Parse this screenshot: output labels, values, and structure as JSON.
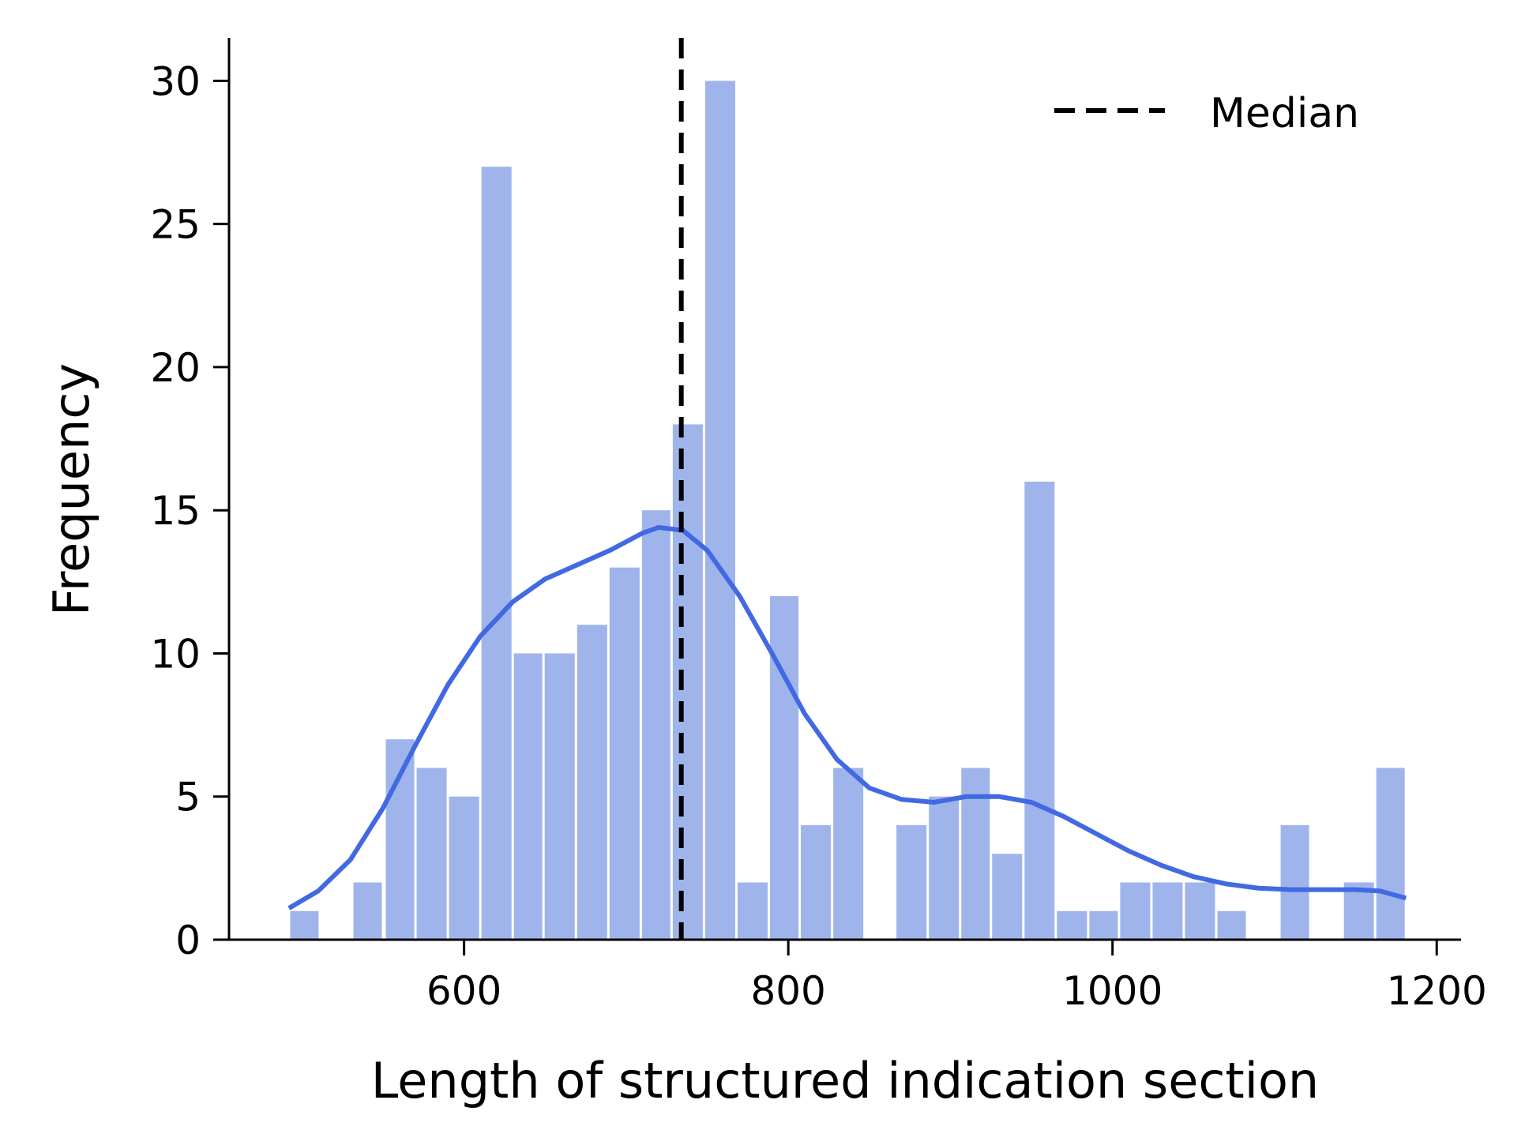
{
  "chart_data": {
    "type": "bar",
    "title": "",
    "xlabel": "Length of structured indication section",
    "ylabel": "Frequency",
    "xlim": [
      455,
      1215
    ],
    "ylim": [
      0,
      31.5
    ],
    "xticks": [
      "600",
      "800",
      "1000",
      "1200"
    ],
    "yticks": [
      "0",
      "5",
      "10",
      "15",
      "20",
      "25",
      "30"
    ],
    "grid": false,
    "legend": {
      "placement": "top-right",
      "entries": [
        "Median"
      ]
    },
    "bar_color": "#a0b4ec",
    "kde_color": "#4169e1",
    "bins": [
      {
        "x0": 492,
        "x1": 511,
        "value": 1
      },
      {
        "x0": 531,
        "x1": 550,
        "value": 2
      },
      {
        "x0": 551,
        "x1": 570,
        "value": 7
      },
      {
        "x0": 570,
        "x1": 590,
        "value": 6
      },
      {
        "x0": 590,
        "x1": 610,
        "value": 5
      },
      {
        "x0": 610,
        "x1": 630,
        "value": 27
      },
      {
        "x0": 630,
        "x1": 649,
        "value": 10
      },
      {
        "x0": 649,
        "x1": 669,
        "value": 10
      },
      {
        "x0": 669,
        "x1": 689,
        "value": 11
      },
      {
        "x0": 689,
        "x1": 709,
        "value": 13
      },
      {
        "x0": 709,
        "x1": 728,
        "value": 15
      },
      {
        "x0": 728,
        "x1": 748,
        "value": 18
      },
      {
        "x0": 748,
        "x1": 768,
        "value": 30
      },
      {
        "x0": 768,
        "x1": 788,
        "value": 2
      },
      {
        "x0": 788,
        "x1": 807,
        "value": 12
      },
      {
        "x0": 807,
        "x1": 827,
        "value": 4
      },
      {
        "x0": 827,
        "x1": 847,
        "value": 6
      },
      {
        "x0": 866,
        "x1": 886,
        "value": 4
      },
      {
        "x0": 886,
        "x1": 906,
        "value": 5
      },
      {
        "x0": 906,
        "x1": 925,
        "value": 6
      },
      {
        "x0": 925,
        "x1": 945,
        "value": 3
      },
      {
        "x0": 945,
        "x1": 965,
        "value": 16
      },
      {
        "x0": 965,
        "x1": 985,
        "value": 1
      },
      {
        "x0": 985,
        "x1": 1004,
        "value": 1
      },
      {
        "x0": 1004,
        "x1": 1024,
        "value": 2
      },
      {
        "x0": 1024,
        "x1": 1044,
        "value": 2
      },
      {
        "x0": 1044,
        "x1": 1064,
        "value": 2
      },
      {
        "x0": 1064,
        "x1": 1083,
        "value": 1
      },
      {
        "x0": 1103,
        "x1": 1122,
        "value": 4
      },
      {
        "x0": 1142,
        "x1": 1162,
        "value": 2
      },
      {
        "x0": 1162,
        "x1": 1181,
        "value": 6
      }
    ],
    "kde": [
      [
        492,
        1.1
      ],
      [
        510,
        1.7
      ],
      [
        530,
        2.8
      ],
      [
        550,
        4.6
      ],
      [
        570,
        6.8
      ],
      [
        590,
        8.9
      ],
      [
        610,
        10.6
      ],
      [
        630,
        11.8
      ],
      [
        650,
        12.6
      ],
      [
        670,
        13.1
      ],
      [
        690,
        13.6
      ],
      [
        710,
        14.2
      ],
      [
        720,
        14.4
      ],
      [
        735,
        14.3
      ],
      [
        750,
        13.6
      ],
      [
        770,
        12.0
      ],
      [
        790,
        10.0
      ],
      [
        810,
        7.9
      ],
      [
        830,
        6.3
      ],
      [
        850,
        5.3
      ],
      [
        870,
        4.9
      ],
      [
        890,
        4.8
      ],
      [
        910,
        5.0
      ],
      [
        930,
        5.0
      ],
      [
        950,
        4.8
      ],
      [
        970,
        4.3
      ],
      [
        990,
        3.7
      ],
      [
        1010,
        3.1
      ],
      [
        1030,
        2.6
      ],
      [
        1050,
        2.2
      ],
      [
        1070,
        1.95
      ],
      [
        1090,
        1.8
      ],
      [
        1110,
        1.75
      ],
      [
        1130,
        1.75
      ],
      [
        1150,
        1.75
      ],
      [
        1165,
        1.7
      ],
      [
        1181,
        1.45
      ]
    ],
    "median": 734
  }
}
